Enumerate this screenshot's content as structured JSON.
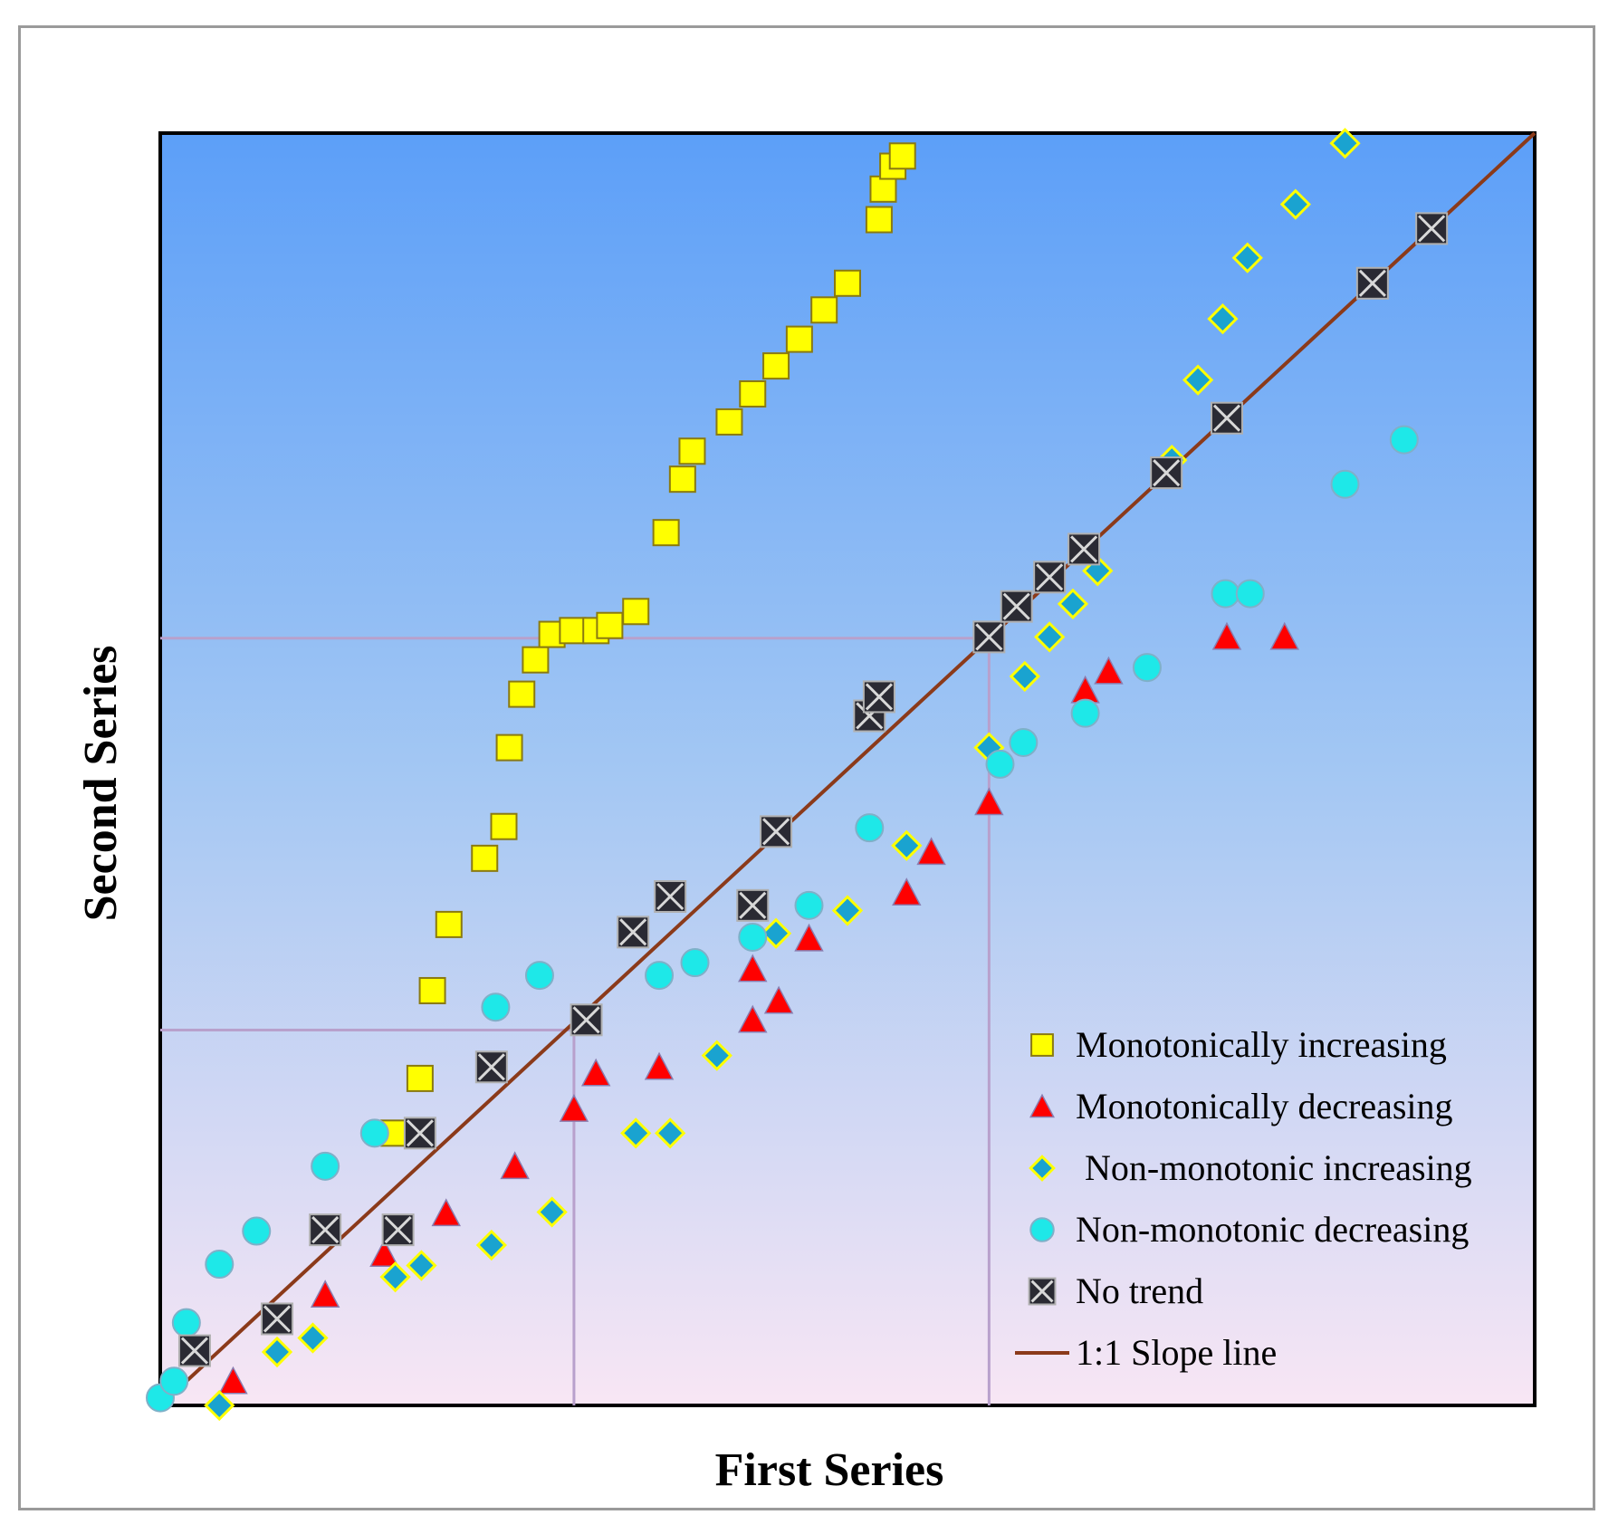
{
  "chart_data": {
    "type": "scatter",
    "xlabel": "First Series",
    "ylabel": "Second Series",
    "xlim": [
      0,
      100
    ],
    "ylim": [
      0,
      100
    ],
    "grid": false,
    "legend_position": "bottom-right",
    "colors": {
      "background_top": "#5c9ff8",
      "background_bottom": "#f6e6f4",
      "monotonically_increasing": "#ffff00",
      "monotonically_decreasing": "#ff0000",
      "non_monotonic_increasing": "#1aa3d0",
      "non_monotonic_decreasing": "#1ee8e8",
      "no_trend": "#2a2a33",
      "slope_line": "#8b3a1a",
      "reference_lines": "#b8a0cc"
    },
    "reference_lines": [
      {
        "x": 30.1,
        "y": 29.5
      },
      {
        "x": 60.3,
        "y": 60.3
      }
    ],
    "series": [
      {
        "name": "Monotonically increasing",
        "marker": "square",
        "points": [
          [
            17.0,
            21.4
          ],
          [
            18.9,
            25.7
          ],
          [
            19.8,
            32.6
          ],
          [
            21.0,
            37.8
          ],
          [
            23.6,
            43.0
          ],
          [
            25.0,
            45.5
          ],
          [
            25.4,
            51.7
          ],
          [
            26.3,
            55.9
          ],
          [
            27.3,
            58.6
          ],
          [
            28.5,
            60.6
          ],
          [
            30.0,
            60.9
          ],
          [
            31.7,
            60.9
          ],
          [
            32.7,
            61.3
          ],
          [
            34.6,
            62.4
          ],
          [
            36.8,
            68.6
          ],
          [
            38.0,
            72.8
          ],
          [
            38.7,
            75.0
          ],
          [
            41.4,
            77.3
          ],
          [
            43.1,
            79.5
          ],
          [
            44.8,
            81.7
          ],
          [
            46.5,
            83.8
          ],
          [
            48.3,
            86.1
          ],
          [
            50.0,
            88.2
          ],
          [
            52.3,
            93.2
          ],
          [
            52.6,
            95.6
          ],
          [
            53.3,
            97.4
          ],
          [
            54.0,
            98.2
          ]
        ]
      },
      {
        "name": "Monotonically decreasing",
        "marker": "triangle",
        "points": [
          [
            5.3,
            1.9
          ],
          [
            12.0,
            8.7
          ],
          [
            16.3,
            11.9
          ],
          [
            20.8,
            15.1
          ],
          [
            25.8,
            18.8
          ],
          [
            30.1,
            23.3
          ],
          [
            31.7,
            26.1
          ],
          [
            36.3,
            26.6
          ],
          [
            43.1,
            30.3
          ],
          [
            45.0,
            31.8
          ],
          [
            43.1,
            34.3
          ],
          [
            47.2,
            36.7
          ],
          [
            54.3,
            40.3
          ],
          [
            56.1,
            43.5
          ],
          [
            60.3,
            47.4
          ],
          [
            67.3,
            56.2
          ],
          [
            69.0,
            57.7
          ],
          [
            77.6,
            60.4
          ],
          [
            81.8,
            60.4
          ]
        ]
      },
      {
        "name": "Non-monotonic increasing",
        "marker": "diamond",
        "points": [
          [
            4.3,
            0.0
          ],
          [
            8.5,
            4.2
          ],
          [
            11.1,
            5.3
          ],
          [
            17.1,
            10.1
          ],
          [
            19.0,
            11.0
          ],
          [
            24.1,
            12.6
          ],
          [
            28.5,
            15.2
          ],
          [
            34.6,
            21.4
          ],
          [
            37.1,
            21.4
          ],
          [
            40.5,
            27.5
          ],
          [
            44.8,
            37.1
          ],
          [
            50.0,
            38.9
          ],
          [
            54.3,
            44.0
          ],
          [
            60.3,
            51.7
          ],
          [
            62.9,
            57.3
          ],
          [
            64.7,
            60.4
          ],
          [
            66.4,
            63.0
          ],
          [
            68.2,
            65.6
          ],
          [
            73.6,
            74.3
          ],
          [
            75.5,
            80.6
          ],
          [
            77.3,
            85.4
          ],
          [
            79.1,
            90.2
          ],
          [
            82.6,
            94.4
          ],
          [
            86.2,
            99.2
          ]
        ]
      },
      {
        "name": "Non-monotonic decreasing",
        "marker": "circle",
        "points": [
          [
            0.0,
            0.6
          ],
          [
            1.0,
            1.9
          ],
          [
            1.9,
            6.5
          ],
          [
            4.3,
            11.1
          ],
          [
            7.0,
            13.7
          ],
          [
            12.0,
            18.8
          ],
          [
            15.6,
            21.4
          ],
          [
            24.4,
            31.3
          ],
          [
            27.6,
            33.8
          ],
          [
            36.3,
            33.8
          ],
          [
            38.9,
            34.8
          ],
          [
            43.1,
            36.8
          ],
          [
            47.2,
            39.3
          ],
          [
            51.6,
            45.4
          ],
          [
            61.1,
            50.4
          ],
          [
            62.8,
            52.1
          ],
          [
            67.3,
            54.4
          ],
          [
            71.8,
            58.0
          ],
          [
            77.5,
            63.8
          ],
          [
            79.3,
            63.8
          ],
          [
            86.2,
            72.4
          ],
          [
            90.5,
            75.9
          ]
        ]
      },
      {
        "name": "No trend",
        "marker": "boxx",
        "points": [
          [
            2.5,
            4.3
          ],
          [
            8.5,
            6.8
          ],
          [
            12.0,
            13.8
          ],
          [
            17.3,
            13.8
          ],
          [
            18.9,
            21.4
          ],
          [
            24.1,
            26.6
          ],
          [
            31.0,
            30.3
          ],
          [
            34.4,
            37.2
          ],
          [
            37.1,
            40.0
          ],
          [
            43.1,
            39.3
          ],
          [
            44.8,
            45.1
          ],
          [
            51.6,
            54.2
          ],
          [
            52.3,
            55.7
          ],
          [
            60.3,
            60.4
          ],
          [
            62.3,
            62.8
          ],
          [
            64.7,
            65.1
          ],
          [
            67.2,
            67.3
          ],
          [
            73.2,
            73.3
          ],
          [
            77.6,
            77.6
          ],
          [
            88.2,
            88.2
          ],
          [
            92.5,
            92.5
          ]
        ]
      }
    ],
    "slope_line": {
      "name": "1:1 Slope line",
      "from": [
        0,
        0
      ],
      "to": [
        100,
        100
      ]
    },
    "legend": [
      {
        "label": "Monotonically increasing",
        "marker": "square"
      },
      {
        "label": "Monotonically decreasing",
        "marker": "triangle"
      },
      {
        "label": " Non-monotonic increasing",
        "marker": "diamond"
      },
      {
        "label": "Non-monotonic decreasing",
        "marker": "circle"
      },
      {
        "label": "No trend",
        "marker": "boxx"
      },
      {
        "label": "1:1 Slope line",
        "marker": "line"
      }
    ]
  }
}
